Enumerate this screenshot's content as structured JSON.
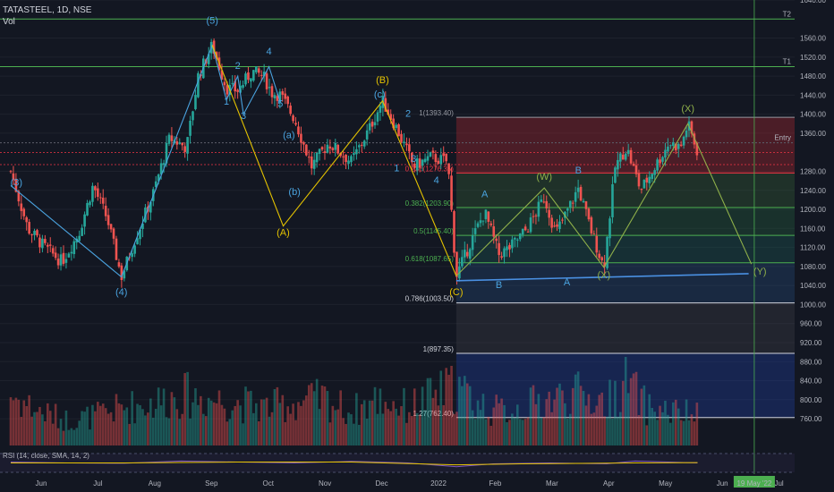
{
  "header": {
    "symbol": "TATASTEEL, 1D, NSE",
    "volume_label": "Vol"
  },
  "rsi_label": "RSI (14, close, SMA, 14, 2)",
  "colors": {
    "bg": "#131722",
    "up": "#26a69a",
    "down": "#ef5350",
    "grid": "#1e222d",
    "wave_blue": "#4aa3df",
    "wave_yellow": "#e5c300",
    "wave_green": "#8fb04a",
    "level_green": "#4caf50",
    "price_red": "#f23645",
    "axis_text": "#b2b5be"
  },
  "chart_data": {
    "type": "candlestick",
    "y_range": [
      700,
      1640
    ],
    "y_ticks": [
      "1640.00",
      "1560.00",
      "1520.00",
      "1480.00",
      "1440.00",
      "1400.00",
      "1360.00",
      "1280.00",
      "1240.00",
      "1200.00",
      "1160.00",
      "1120.00",
      "1080.00",
      "1040.00",
      "1000.00",
      "960.00",
      "920.00",
      "880.00",
      "840.00",
      "800.00",
      "760.00"
    ],
    "x_ticks": [
      "Jun",
      "Jul",
      "Aug",
      "Sep",
      "Oct",
      "Nov",
      "Dec",
      "2022",
      "Feb",
      "Mar",
      "Apr",
      "May",
      "Jun",
      "Jul"
    ],
    "x_range_months": [
      0,
      14
    ],
    "price_path": [
      [
        0.0,
        1280
      ],
      [
        0.3,
        1160
      ],
      [
        0.6,
        1120
      ],
      [
        0.9,
        1090
      ],
      [
        1.2,
        1150
      ],
      [
        1.45,
        1250
      ],
      [
        1.7,
        1180
      ],
      [
        1.95,
        1058
      ],
      [
        2.2,
        1140
      ],
      [
        2.5,
        1230
      ],
      [
        2.8,
        1350
      ],
      [
        3.1,
        1330
      ],
      [
        3.3,
        1480
      ],
      [
        3.55,
        1545
      ],
      [
        3.8,
        1455
      ],
      [
        4.0,
        1450
      ],
      [
        4.25,
        1490
      ],
      [
        4.45,
        1480
      ],
      [
        4.6,
        1445
      ],
      [
        4.75,
        1440
      ],
      [
        5.0,
        1390
      ],
      [
        5.3,
        1290
      ],
      [
        5.6,
        1340
      ],
      [
        6.0,
        1300
      ],
      [
        6.3,
        1365
      ],
      [
        6.55,
        1428
      ],
      [
        6.8,
        1370
      ],
      [
        7.1,
        1290
      ],
      [
        7.4,
        1310
      ],
      [
        7.7,
        1300
      ],
      [
        7.85,
        1060
      ],
      [
        8.1,
        1130
      ],
      [
        8.35,
        1195
      ],
      [
        8.6,
        1105
      ],
      [
        8.8,
        1120
      ],
      [
        9.1,
        1160
      ],
      [
        9.4,
        1225
      ],
      [
        9.6,
        1150
      ],
      [
        9.8,
        1195
      ],
      [
        10.0,
        1245
      ],
      [
        10.2,
        1165
      ],
      [
        10.45,
        1078
      ],
      [
        10.65,
        1290
      ],
      [
        10.85,
        1330
      ],
      [
        11.1,
        1240
      ],
      [
        11.4,
        1300
      ],
      [
        11.6,
        1340
      ],
      [
        11.8,
        1330
      ],
      [
        11.93,
        1380
      ],
      [
        12.1,
        1320
      ]
    ],
    "volume_path": [
      [
        0.0,
        60
      ],
      [
        0.5,
        40
      ],
      [
        1.0,
        30
      ],
      [
        1.5,
        35
      ],
      [
        2.0,
        45
      ],
      [
        2.5,
        50
      ],
      [
        3.0,
        60
      ],
      [
        3.5,
        55
      ],
      [
        4.0,
        50
      ],
      [
        4.5,
        45
      ],
      [
        5.0,
        50
      ],
      [
        5.5,
        55
      ],
      [
        6.0,
        40
      ],
      [
        6.5,
        55
      ],
      [
        7.0,
        45
      ],
      [
        7.5,
        60
      ],
      [
        7.85,
        70
      ],
      [
        8.2,
        50
      ],
      [
        8.6,
        40
      ],
      [
        9.0,
        45
      ],
      [
        9.5,
        55
      ],
      [
        10.0,
        60
      ],
      [
        10.5,
        50
      ],
      [
        10.85,
        75
      ],
      [
        11.2,
        45
      ],
      [
        11.6,
        40
      ],
      [
        12.1,
        35
      ]
    ],
    "volume_max": 130,
    "horizontal_levels": [
      {
        "price": 1600,
        "label": "1600.00",
        "tag": "T2"
      },
      {
        "price": 1500,
        "label": "1500.00",
        "tag": "T1"
      },
      {
        "price": 1340,
        "label": "1340.00",
        "tag": "Entry"
      }
    ],
    "price_markers": [
      {
        "price": 1319.5,
        "label": "1319.50"
      },
      {
        "price": 1294.15,
        "label": "1294.15"
      }
    ],
    "fib_levels": [
      {
        "ratio": "",
        "price": 1393.4,
        "label": "1(1393.40)"
      },
      {
        "ratio": "0.236",
        "price": 1276.35,
        "label": "0.236(1276.35)"
      },
      {
        "ratio": "0.382",
        "price": 1203.9,
        "label": "0.382(1203.90)"
      },
      {
        "ratio": "0.5",
        "price": 1145.4,
        "label": "0.5(1145.40)"
      },
      {
        "ratio": "0.618",
        "price": 1087.65,
        "label": "0.618(1087.65)"
      },
      {
        "ratio": "0.786",
        "price": 1003.5,
        "label": "0.786(1003.50)"
      },
      {
        "ratio": "1",
        "price": 897.35,
        "label": "1(897.35)"
      },
      {
        "ratio": "1.27",
        "price": 762.4,
        "label": "1.27(762.40)"
      }
    ],
    "wave_labels": [
      {
        "text": "(3)",
        "month": 0.1,
        "price": 1250,
        "color": "blue"
      },
      {
        "text": "(4)",
        "month": 1.95,
        "price": 1020,
        "color": "blue"
      },
      {
        "text": "(5)",
        "month": 3.55,
        "price": 1590,
        "color": "blue"
      },
      {
        "text": "1",
        "month": 3.8,
        "price": 1420,
        "color": "blue"
      },
      {
        "text": "2",
        "month": 4.0,
        "price": 1495,
        "color": "blue"
      },
      {
        "text": "3",
        "month": 4.1,
        "price": 1390,
        "color": "blue"
      },
      {
        "text": "4",
        "month": 4.55,
        "price": 1525,
        "color": "blue"
      },
      {
        "text": "5",
        "month": 4.75,
        "price": 1415,
        "color": "blue"
      },
      {
        "text": "(a)",
        "month": 4.9,
        "price": 1350,
        "color": "blue"
      },
      {
        "text": "(b)",
        "month": 5.0,
        "price": 1230,
        "color": "blue"
      },
      {
        "text": "(A)",
        "month": 4.8,
        "price": 1145,
        "color": "yellow"
      },
      {
        "text": "(B)",
        "month": 6.55,
        "price": 1465,
        "color": "yellow"
      },
      {
        "text": "(c)",
        "month": 6.5,
        "price": 1435,
        "color": "blue"
      },
      {
        "text": "1",
        "month": 6.8,
        "price": 1280,
        "color": "blue"
      },
      {
        "text": "2",
        "month": 7.0,
        "price": 1395,
        "color": "blue"
      },
      {
        "text": "3",
        "month": 7.1,
        "price": 1300,
        "color": "blue"
      },
      {
        "text": "4",
        "month": 7.5,
        "price": 1255,
        "color": "blue"
      },
      {
        "text": "(C)",
        "month": 7.85,
        "price": 1020,
        "color": "yellow"
      },
      {
        "text": "A",
        "month": 8.35,
        "price": 1225,
        "color": "blue"
      },
      {
        "text": "B",
        "month": 8.6,
        "price": 1035,
        "color": "blue"
      },
      {
        "text": "(W)",
        "month": 9.4,
        "price": 1262,
        "color": "green"
      },
      {
        "text": "A",
        "month": 9.8,
        "price": 1040,
        "color": "blue"
      },
      {
        "text": "B",
        "month": 10.0,
        "price": 1275,
        "color": "blue"
      },
      {
        "text": "(X)",
        "month": 10.45,
        "price": 1055,
        "color": "green"
      },
      {
        "text": "(X)",
        "month": 11.93,
        "price": 1405,
        "color": "green"
      },
      {
        "text": "(Y)",
        "month": 13.2,
        "price": 1063,
        "color": "green"
      }
    ],
    "wave_lines": {
      "blue_impulse": [
        [
          0.0,
          1250
        ],
        [
          1.95,
          1058
        ],
        [
          3.55,
          1545
        ],
        [
          3.8,
          1430
        ],
        [
          4.0,
          1480
        ],
        [
          4.1,
          1400
        ],
        [
          4.55,
          1500
        ],
        [
          4.75,
          1425
        ]
      ],
      "yellow_abc": [
        [
          3.55,
          1545
        ],
        [
          4.8,
          1165
        ],
        [
          6.55,
          1428
        ],
        [
          7.85,
          1060
        ]
      ],
      "green_wxy": [
        [
          7.85,
          1060
        ],
        [
          9.4,
          1245
        ],
        [
          10.45,
          1078
        ],
        [
          11.93,
          1380
        ],
        [
          13.05,
          1085
        ]
      ]
    },
    "trendline": [
      [
        7.85,
        1050
      ],
      [
        13.0,
        1065
      ]
    ],
    "projection_box": {
      "from_month": 7.85,
      "to_month": 14.0
    },
    "vertical_marker": {
      "month": 13.1,
      "label": "19 May '22"
    },
    "rsi": {
      "path": [
        [
          0,
          0.55
        ],
        [
          1,
          0.5
        ],
        [
          2,
          0.48
        ],
        [
          3,
          0.6
        ],
        [
          4,
          0.55
        ],
        [
          5,
          0.5
        ],
        [
          6,
          0.58
        ],
        [
          7,
          0.5
        ],
        [
          7.85,
          0.3
        ],
        [
          8.5,
          0.45
        ],
        [
          9.5,
          0.5
        ],
        [
          10.5,
          0.45
        ],
        [
          11,
          0.6
        ],
        [
          12.1,
          0.5
        ]
      ],
      "sma_path": [
        [
          0,
          0.5
        ],
        [
          2,
          0.5
        ],
        [
          4,
          0.55
        ],
        [
          6,
          0.55
        ],
        [
          7.85,
          0.4
        ],
        [
          9,
          0.45
        ],
        [
          11,
          0.5
        ],
        [
          12.1,
          0.52
        ]
      ]
    }
  }
}
